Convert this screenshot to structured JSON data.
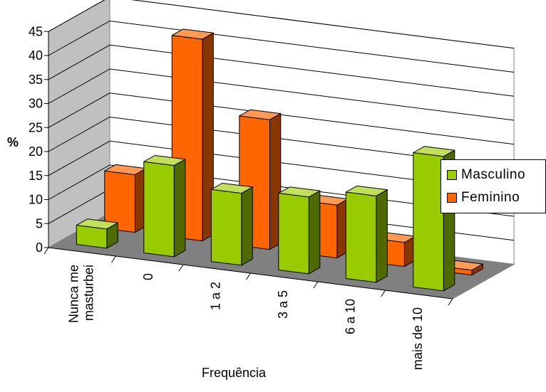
{
  "chart_data": {
    "type": "bar",
    "ylabel": "%",
    "xlabel": "Frequência",
    "ylim": [
      0,
      45
    ],
    "yticks": [
      0,
      5,
      10,
      15,
      20,
      25,
      30,
      35,
      40,
      45
    ],
    "categories": [
      "Nunca me masturbei",
      "0",
      "1 a 2",
      "3 a 5",
      "6 a 10",
      "mais de 10"
    ],
    "category_lines": [
      [
        "Nunca me",
        "masturbei"
      ],
      [
        "0"
      ],
      [
        "1 a 2"
      ],
      [
        "3 a 5"
      ],
      [
        "6 a 10"
      ],
      [
        "mais de 10"
      ]
    ],
    "grid": true,
    "legend_position": "right",
    "series": [
      {
        "name": "Masculino",
        "values": [
          4,
          19,
          15,
          16,
          18,
          28
        ],
        "color": "#99cc00",
        "dark": "#4f6a00",
        "light": "#c2e05a"
      },
      {
        "name": "Feminino",
        "values": [
          12,
          42,
          27,
          11,
          5,
          1
        ],
        "color": "#ff6600",
        "dark": "#8a3600",
        "light": "#ff9a55"
      }
    ]
  }
}
